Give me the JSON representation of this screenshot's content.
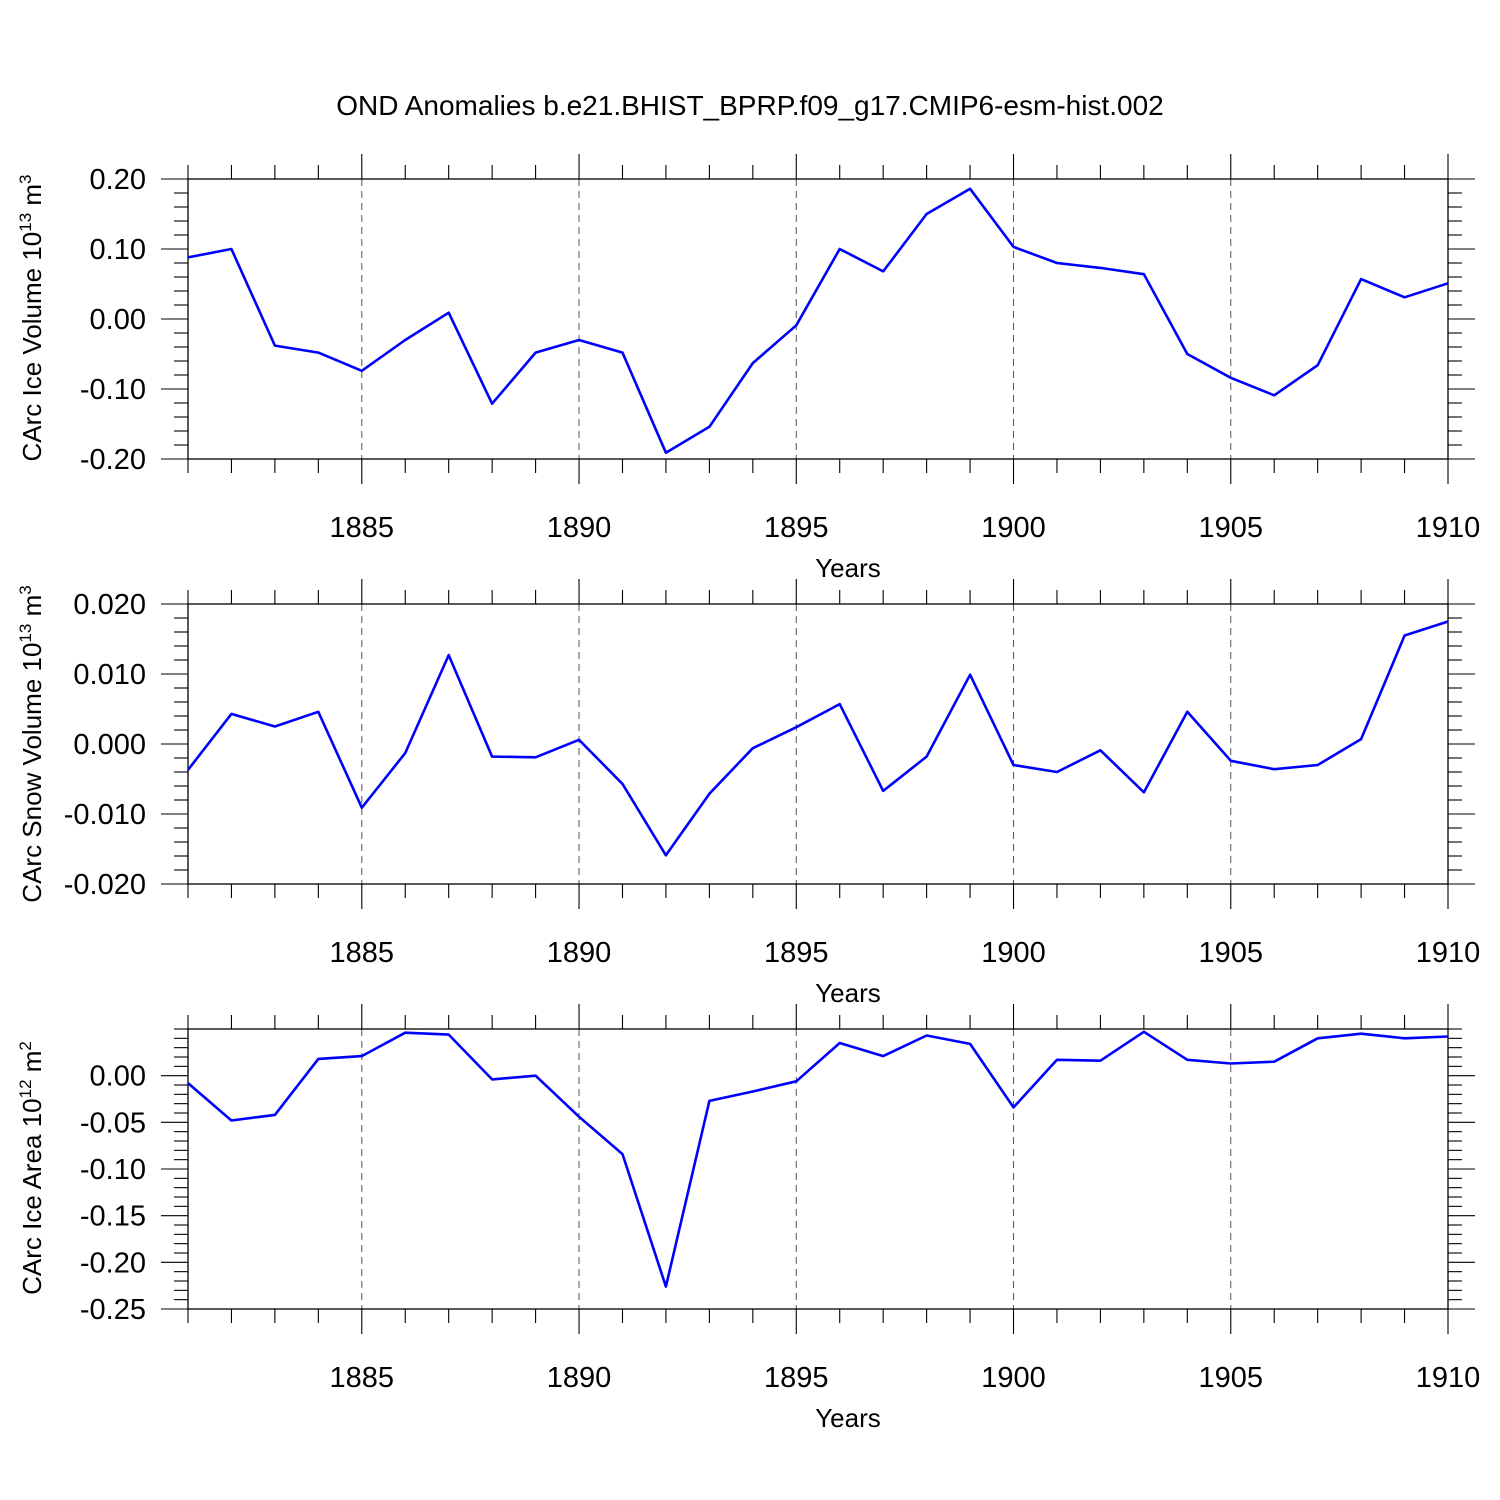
{
  "title": "OND Anomalies b.e21.BHIST_BPRP.f09_g17.CMIP6-esm-hist.002",
  "chart_data": [
    {
      "type": "line",
      "ylabel": "CArc Ice Volume 10",
      "ylabel_exp": "13",
      "ylabel_unit": " m",
      "ylabel_unit_exp": "3",
      "xlabel": "Years",
      "xlim": [
        1881,
        1910
      ],
      "ylim": [
        -0.2,
        0.2
      ],
      "xticks": [
        1885,
        1890,
        1895,
        1900,
        1905,
        1910
      ],
      "xtick_labels": [
        "1885",
        "1890",
        "1895",
        "1900",
        "1905",
        "1910"
      ],
      "yticks": [
        0.2,
        0.1,
        0.0,
        -0.1,
        -0.2
      ],
      "ytick_labels": [
        "0.20",
        "0.10",
        "0.00",
        "-0.10",
        "-0.20"
      ],
      "ytick_minor_step": 0.02,
      "grid": "dashed vertical at major x ticks",
      "series": [
        {
          "name": "CArc Ice Volume",
          "color": "#0000ff",
          "x": [
            1881,
            1882,
            1883,
            1884,
            1885,
            1886,
            1887,
            1888,
            1889,
            1890,
            1891,
            1892,
            1893,
            1894,
            1895,
            1896,
            1897,
            1898,
            1899,
            1900,
            1901,
            1902,
            1903,
            1904,
            1905,
            1906,
            1907,
            1908,
            1909,
            1910
          ],
          "values": [
            0.088,
            0.1,
            -0.038,
            -0.048,
            -0.074,
            -0.03,
            0.009,
            -0.121,
            -0.048,
            -0.03,
            -0.048,
            -0.191,
            -0.154,
            -0.063,
            -0.009,
            0.1,
            0.068,
            0.15,
            0.186,
            0.103,
            0.08,
            0.073,
            0.064,
            -0.05,
            -0.084,
            -0.109,
            -0.066,
            0.057,
            0.031,
            0.051
          ]
        }
      ]
    },
    {
      "type": "line",
      "ylabel": "CArc Snow Volume 10",
      "ylabel_exp": "13",
      "ylabel_unit": " m",
      "ylabel_unit_exp": "3",
      "xlabel": "Years",
      "xlim": [
        1881,
        1910
      ],
      "ylim": [
        -0.02,
        0.02
      ],
      "xticks": [
        1885,
        1890,
        1895,
        1900,
        1905,
        1910
      ],
      "xtick_labels": [
        "1885",
        "1890",
        "1895",
        "1900",
        "1905",
        "1910"
      ],
      "yticks": [
        0.02,
        0.01,
        0.0,
        -0.01,
        -0.02
      ],
      "ytick_labels": [
        "0.020",
        "0.010",
        "0.000",
        "-0.010",
        "-0.020"
      ],
      "ytick_minor_step": 0.002,
      "grid": "dashed vertical at major x ticks",
      "series": [
        {
          "name": "CArc Snow Volume",
          "color": "#0000ff",
          "x": [
            1881,
            1882,
            1883,
            1884,
            1885,
            1886,
            1887,
            1888,
            1889,
            1890,
            1891,
            1892,
            1893,
            1894,
            1895,
            1896,
            1897,
            1898,
            1899,
            1900,
            1901,
            1902,
            1903,
            1904,
            1905,
            1906,
            1907,
            1908,
            1909,
            1910
          ],
          "values": [
            -0.0037,
            0.0043,
            0.0025,
            0.0046,
            -0.0091,
            -0.0013,
            0.0127,
            -0.0018,
            -0.0019,
            0.0006,
            -0.0057,
            -0.0159,
            -0.0071,
            -0.0006,
            0.0024,
            0.0057,
            -0.0067,
            -0.0018,
            0.0099,
            -0.003,
            -0.004,
            -0.0009,
            -0.0069,
            0.0046,
            -0.0024,
            -0.0036,
            -0.003,
            0.0007,
            0.0155,
            0.0175
          ]
        }
      ]
    },
    {
      "type": "line",
      "ylabel": "CArc Ice Area 10",
      "ylabel_exp": "12",
      "ylabel_unit": " m",
      "ylabel_unit_exp": "2",
      "xlabel": "Years",
      "xlim": [
        1881,
        1910
      ],
      "ylim": [
        -0.25,
        0.05
      ],
      "xticks": [
        1885,
        1890,
        1895,
        1900,
        1905,
        1910
      ],
      "xtick_labels": [
        "1885",
        "1890",
        "1895",
        "1900",
        "1905",
        "1910"
      ],
      "yticks": [
        0.0,
        -0.05,
        -0.1,
        -0.15,
        -0.2,
        -0.25
      ],
      "ytick_labels": [
        "0.00",
        "-0.05",
        "-0.10",
        "-0.15",
        "-0.20",
        "-0.25"
      ],
      "ytick_minor_step": 0.01,
      "grid": "dashed vertical at major x ticks",
      "series": [
        {
          "name": "CArc Ice Area",
          "color": "#0000ff",
          "x": [
            1881,
            1882,
            1883,
            1884,
            1885,
            1886,
            1887,
            1888,
            1889,
            1890,
            1891,
            1892,
            1893,
            1894,
            1895,
            1896,
            1897,
            1898,
            1899,
            1900,
            1901,
            1902,
            1903,
            1904,
            1905,
            1906,
            1907,
            1908,
            1909,
            1910
          ],
          "values": [
            -0.008,
            -0.048,
            -0.042,
            0.018,
            0.021,
            0.046,
            0.044,
            -0.004,
            0.0,
            -0.044,
            -0.084,
            -0.226,
            -0.027,
            -0.017,
            -0.006,
            0.035,
            0.021,
            0.043,
            0.034,
            -0.034,
            0.017,
            0.016,
            0.047,
            0.017,
            0.013,
            0.015,
            0.04,
            0.045,
            0.04,
            0.042
          ]
        }
      ]
    }
  ]
}
